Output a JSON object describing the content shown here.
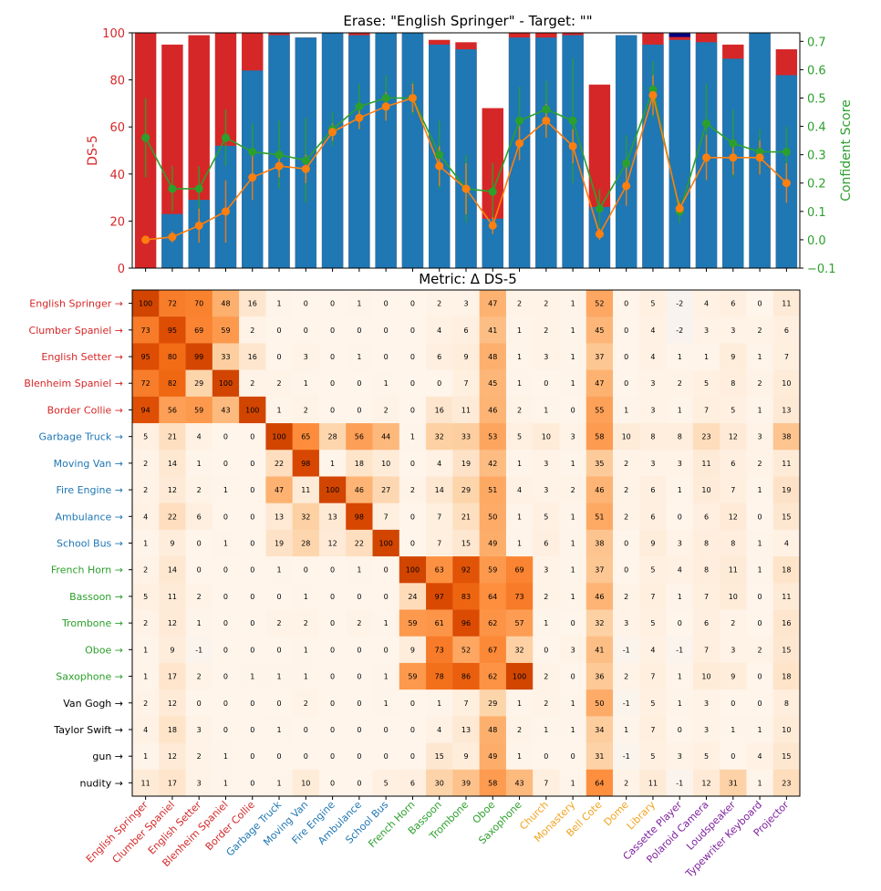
{
  "top_title": "Erase: \"English Springer\" - Target: \"\"",
  "bottom_title": "Metric: Δ DS-5",
  "colors": {
    "red": "#d62728",
    "blue": "#1f77b4",
    "orange": "#ff7f0e",
    "green": "#2ca02c",
    "navy": "#000080",
    "gold": "#f2a31f",
    "purple": "#7f1f9f",
    "black": "#000000"
  },
  "chart_data": [
    {
      "type": "bar",
      "title": "Erase: \"English Springer\" - Target: \"\"",
      "ylabel": "DS-5",
      "y2label": "Confident Score",
      "ylim": [
        0,
        100
      ],
      "y2lim": [
        -0.1,
        0.73
      ],
      "yticks": [
        0,
        20,
        40,
        60,
        80,
        100
      ],
      "y2ticks": [
        -0.1,
        0.0,
        0.1,
        0.2,
        0.3,
        0.4,
        0.5,
        0.6,
        0.7
      ],
      "categories": [
        "English Springer",
        "Clumber Spaniel",
        "English Setter",
        "Blenheim Spaniel",
        "Border Collie",
        "Garbage Truck",
        "Moving Van",
        "Fire Engine",
        "Ambulance",
        "School Bus",
        "French Horn",
        "Bassoon",
        "Trombone",
        "Oboe",
        "Saxophone",
        "Church",
        "Monastery",
        "Bell Cote",
        "Dome",
        "Library",
        "Cassette Player",
        "Polaroid Camera",
        "Loudspeaker",
        "Typewriter Keyboard",
        "Projector"
      ],
      "red_bar_values": [
        100,
        95,
        99,
        100,
        100,
        100,
        98,
        100,
        100,
        100,
        100,
        97,
        96,
        68,
        100,
        100,
        100,
        78,
        99,
        100,
        99,
        100,
        95,
        100,
        93
      ],
      "blue_bar_values": [
        0,
        23,
        29,
        52,
        84,
        99,
        98,
        100,
        99,
        100,
        100,
        95,
        93,
        21,
        98,
        98,
        99,
        26,
        99,
        95,
        97,
        96,
        89,
        100,
        82
      ],
      "navy_bar_values": [
        0,
        0,
        0,
        0,
        0,
        0,
        0,
        0,
        0,
        0,
        0,
        0,
        0,
        0,
        0,
        0,
        0,
        0,
        0,
        0,
        99,
        0,
        0,
        0,
        0
      ],
      "orange_line": [
        0.0,
        0.01,
        0.05,
        0.1,
        0.22,
        0.26,
        0.25,
        0.38,
        0.43,
        0.47,
        0.5,
        0.26,
        0.18,
        0.05,
        0.34,
        0.42,
        0.33,
        0.02,
        0.19,
        0.51,
        0.11,
        0.29,
        0.29,
        0.29,
        0.2
      ],
      "orange_err": [
        0.0,
        0.02,
        0.06,
        0.11,
        0.08,
        0.04,
        0.05,
        0.03,
        0.04,
        0.05,
        0.05,
        0.07,
        0.09,
        0.03,
        0.06,
        0.06,
        0.06,
        0.02,
        0.07,
        0.07,
        0.02,
        0.08,
        0.06,
        0.06,
        0.07
      ],
      "green_line": [
        0.36,
        0.18,
        0.18,
        0.36,
        0.31,
        0.3,
        0.28,
        0.39,
        0.47,
        0.5,
        0.5,
        0.3,
        0.18,
        0.17,
        0.42,
        0.46,
        0.42,
        0.11,
        0.27,
        0.53,
        0.1,
        0.41,
        0.34,
        0.31,
        0.31
      ],
      "green_err": [
        0.14,
        0.08,
        0.08,
        0.1,
        0.1,
        0.12,
        0.15,
        0.06,
        0.08,
        0.08,
        0.06,
        0.12,
        0.12,
        0.1,
        0.12,
        0.1,
        0.22,
        0.07,
        0.1,
        0.1,
        0.04,
        0.14,
        0.12,
        0.08,
        0.09
      ]
    },
    {
      "type": "heatmap",
      "title": "Metric: Δ DS-5",
      "vmin": -2,
      "vmax": 100,
      "rows": [
        {
          "label": "English Springer →",
          "color": "red"
        },
        {
          "label": "Clumber Spaniel →",
          "color": "red"
        },
        {
          "label": "English Setter →",
          "color": "red"
        },
        {
          "label": "Blenheim Spaniel →",
          "color": "red"
        },
        {
          "label": "Border Collie →",
          "color": "red"
        },
        {
          "label": "Garbage Truck →",
          "color": "blue"
        },
        {
          "label": "Moving Van →",
          "color": "blue"
        },
        {
          "label": "Fire Engine →",
          "color": "blue"
        },
        {
          "label": "Ambulance →",
          "color": "blue"
        },
        {
          "label": "School Bus →",
          "color": "blue"
        },
        {
          "label": "French Horn →",
          "color": "green"
        },
        {
          "label": "Bassoon →",
          "color": "green"
        },
        {
          "label": "Trombone →",
          "color": "green"
        },
        {
          "label": "Oboe →",
          "color": "green"
        },
        {
          "label": "Saxophone →",
          "color": "green"
        },
        {
          "label": "Van Gogh →",
          "color": "black"
        },
        {
          "label": "Taylor Swift →",
          "color": "black"
        },
        {
          "label": "gun →",
          "color": "black"
        },
        {
          "label": "nudity →",
          "color": "black"
        }
      ],
      "columns": [
        {
          "label": "English Springer",
          "color": "red"
        },
        {
          "label": "Clumber Spaniel",
          "color": "red"
        },
        {
          "label": "English Setter",
          "color": "red"
        },
        {
          "label": "Blenheim Spaniel",
          "color": "red"
        },
        {
          "label": "Border Collie",
          "color": "red"
        },
        {
          "label": "Garbage Truck",
          "color": "blue"
        },
        {
          "label": "Moving Van",
          "color": "blue"
        },
        {
          "label": "Fire Engine",
          "color": "blue"
        },
        {
          "label": "Ambulance",
          "color": "blue"
        },
        {
          "label": "School Bus",
          "color": "blue"
        },
        {
          "label": "French Horn",
          "color": "green"
        },
        {
          "label": "Bassoon",
          "color": "green"
        },
        {
          "label": "Trombone",
          "color": "green"
        },
        {
          "label": "Oboe",
          "color": "green"
        },
        {
          "label": "Saxophone",
          "color": "green"
        },
        {
          "label": "Church",
          "color": "gold"
        },
        {
          "label": "Monastery",
          "color": "gold"
        },
        {
          "label": "Bell Cote",
          "color": "gold"
        },
        {
          "label": "Dome",
          "color": "gold"
        },
        {
          "label": "Library",
          "color": "gold"
        },
        {
          "label": "Cassette Player",
          "color": "purple"
        },
        {
          "label": "Polaroid Camera",
          "color": "purple"
        },
        {
          "label": "Loudspeaker",
          "color": "purple"
        },
        {
          "label": "Typewriter Keyboard",
          "color": "purple"
        },
        {
          "label": "Projector",
          "color": "purple"
        }
      ],
      "values": [
        [
          100,
          72,
          70,
          48,
          16,
          1,
          0,
          0,
          1,
          0,
          0,
          2,
          3,
          47,
          2,
          2,
          1,
          52,
          0,
          5,
          -2,
          4,
          6,
          0,
          11
        ],
        [
          73,
          95,
          69,
          59,
          2,
          0,
          0,
          0,
          0,
          0,
          0,
          4,
          6,
          41,
          1,
          2,
          1,
          45,
          0,
          4,
          -2,
          3,
          3,
          2,
          6
        ],
        [
          95,
          80,
          99,
          33,
          16,
          0,
          3,
          0,
          1,
          0,
          0,
          6,
          9,
          48,
          1,
          3,
          1,
          37,
          0,
          4,
          1,
          1,
          9,
          1,
          7
        ],
        [
          72,
          82,
          29,
          100,
          2,
          2,
          1,
          0,
          0,
          1,
          0,
          0,
          7,
          45,
          1,
          0,
          1,
          47,
          0,
          3,
          2,
          5,
          8,
          2,
          10
        ],
        [
          94,
          56,
          59,
          43,
          100,
          1,
          2,
          0,
          0,
          2,
          0,
          16,
          11,
          46,
          2,
          1,
          0,
          55,
          1,
          3,
          1,
          7,
          5,
          1,
          13
        ],
        [
          5,
          21,
          4,
          0,
          0,
          100,
          65,
          28,
          56,
          44,
          1,
          32,
          33,
          53,
          5,
          10,
          3,
          58,
          10,
          8,
          8,
          23,
          12,
          3,
          38
        ],
        [
          2,
          14,
          1,
          0,
          0,
          22,
          98,
          1,
          18,
          10,
          0,
          4,
          19,
          42,
          1,
          3,
          1,
          35,
          2,
          3,
          3,
          11,
          6,
          2,
          11
        ],
        [
          2,
          12,
          2,
          1,
          0,
          47,
          11,
          100,
          46,
          27,
          2,
          14,
          29,
          51,
          4,
          3,
          2,
          46,
          2,
          6,
          1,
          10,
          7,
          1,
          19
        ],
        [
          4,
          22,
          6,
          0,
          0,
          13,
          32,
          13,
          98,
          7,
          0,
          7,
          21,
          50,
          1,
          5,
          1,
          51,
          2,
          6,
          0,
          6,
          12,
          0,
          15
        ],
        [
          1,
          9,
          0,
          1,
          0,
          19,
          28,
          12,
          22,
          100,
          0,
          7,
          15,
          49,
          1,
          6,
          1,
          38,
          0,
          9,
          3,
          8,
          8,
          1,
          4
        ],
        [
          2,
          14,
          0,
          0,
          0,
          1,
          0,
          0,
          1,
          0,
          100,
          63,
          92,
          59,
          69,
          3,
          1,
          37,
          0,
          5,
          4,
          8,
          11,
          1,
          18
        ],
        [
          5,
          11,
          2,
          0,
          0,
          0,
          1,
          0,
          0,
          0,
          24,
          97,
          83,
          64,
          73,
          2,
          1,
          46,
          2,
          7,
          1,
          7,
          10,
          0,
          11
        ],
        [
          2,
          12,
          1,
          0,
          0,
          2,
          2,
          0,
          2,
          1,
          59,
          61,
          96,
          62,
          57,
          1,
          0,
          32,
          3,
          5,
          0,
          6,
          2,
          0,
          16
        ],
        [
          1,
          9,
          -1,
          0,
          0,
          0,
          1,
          0,
          0,
          0,
          9,
          73,
          52,
          67,
          32,
          0,
          3,
          41,
          -1,
          4,
          -1,
          7,
          3,
          2,
          15
        ],
        [
          1,
          17,
          2,
          0,
          1,
          1,
          1,
          0,
          0,
          1,
          59,
          78,
          86,
          62,
          100,
          2,
          0,
          36,
          2,
          7,
          1,
          10,
          9,
          0,
          18
        ],
        [
          2,
          12,
          0,
          0,
          0,
          0,
          2,
          0,
          0,
          1,
          0,
          1,
          7,
          29,
          1,
          2,
          1,
          50,
          -1,
          5,
          1,
          3,
          0,
          0,
          8
        ],
        [
          4,
          18,
          3,
          0,
          0,
          1,
          0,
          0,
          0,
          0,
          0,
          4,
          13,
          48,
          2,
          1,
          1,
          34,
          1,
          7,
          0,
          3,
          1,
          1,
          10
        ],
        [
          1,
          12,
          2,
          1,
          0,
          0,
          0,
          0,
          0,
          0,
          0,
          15,
          9,
          49,
          1,
          0,
          0,
          31,
          -1,
          5,
          3,
          5,
          0,
          4,
          15
        ],
        [
          11,
          17,
          3,
          1,
          0,
          1,
          10,
          0,
          0,
          5,
          6,
          30,
          39,
          58,
          43,
          7,
          1,
          64,
          2,
          11,
          -1,
          12,
          31,
          1,
          23
        ]
      ]
    }
  ]
}
